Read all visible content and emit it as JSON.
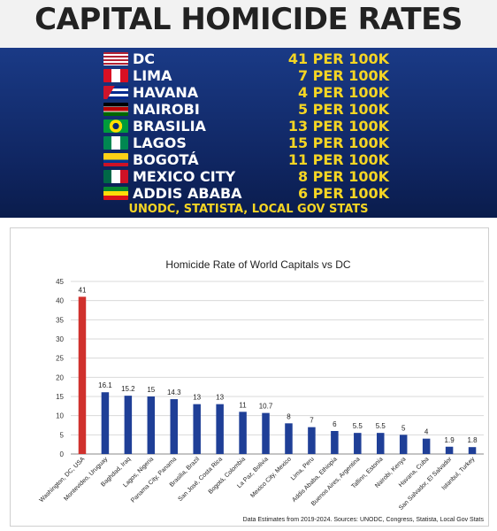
{
  "banner": {
    "title": "CAPITAL HOMICIDE RATES",
    "rows": [
      {
        "city": "DC",
        "rate": "41 PER 100K",
        "flag": "usa-flag-icon"
      },
      {
        "city": "LIMA",
        "rate": "7 PER 100K",
        "flag": "peru-flag-icon"
      },
      {
        "city": "HAVANA",
        "rate": "4 PER 100K",
        "flag": "cuba-flag-icon"
      },
      {
        "city": "NAIROBI",
        "rate": "5 PER 100K",
        "flag": "kenya-flag-icon"
      },
      {
        "city": "BRASILIA",
        "rate": "13 PER 100K",
        "flag": "brazil-flag-icon"
      },
      {
        "city": "LAGOS",
        "rate": "15 PER 100K",
        "flag": "nigeria-flag-icon"
      },
      {
        "city": "BOGOTÁ",
        "rate": "11 PER 100K",
        "flag": "colombia-flag-icon"
      },
      {
        "city": "MEXICO CITY",
        "rate": "8 PER 100K",
        "flag": "mexico-flag-icon"
      },
      {
        "city": "ADDIS ABABA",
        "rate": "6 PER 100K",
        "flag": "ethiopia-flag-icon"
      }
    ],
    "source": "UNODC, STATISTA, LOCAL GOV STATS",
    "colors": {
      "background": "#0f2560",
      "city_text": "#ffffff",
      "rate_text": "#f5d524"
    }
  },
  "chart_data": {
    "type": "bar",
    "title": "Homicide Rate of World Capitals vs DC",
    "categories": [
      "Washington, DC, USA",
      "Montevideo, Uruguay",
      "Baghdad, Iraq",
      "Lagos, Nigeria",
      "Panama City, Panama",
      "Brasilia, Brazil",
      "San José, Costa Rica",
      "Bogotá, Colombia",
      "La Paz, Bolivia",
      "Mexico City, Mexico",
      "Lima, Peru",
      "Addis Ababa, Ethiopia",
      "Buenos Aires, Argentina",
      "Tallinn, Estonia",
      "Nairobi, Kenya",
      "Havana, Cuba",
      "San Salvador, El Salvador",
      "Istanbul, Turkey"
    ],
    "values": [
      41,
      16.1,
      15.2,
      15,
      14.3,
      13,
      13,
      11,
      10.7,
      8,
      7,
      6,
      5.5,
      5.5,
      5,
      4,
      1.9,
      1.8
    ],
    "value_labels": [
      "41",
      "16.1",
      "15.2",
      "15",
      "14.3",
      "13",
      "13",
      "11",
      "10.7",
      "8",
      "7",
      "6",
      "5.5",
      "5.5",
      "5",
      "4",
      "1.9",
      "1.8"
    ],
    "yticks": [
      "0",
      "5",
      "10",
      "15",
      "20",
      "25",
      "30",
      "35",
      "40",
      "45"
    ],
    "ylim": [
      0,
      45
    ],
    "grid": true,
    "colors": {
      "highlight": "#d0312d",
      "bars": "#1f3f97"
    },
    "note": "Data Estimates from 2019-2024. Sources: UNODC, Congress, Statista, Local Gov Stats"
  }
}
